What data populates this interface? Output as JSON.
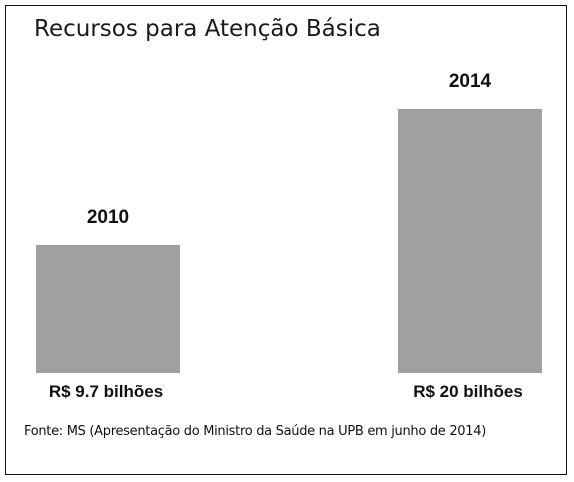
{
  "chart_data": {
    "type": "bar",
    "title": "Recursos para Atenção Básica",
    "categories": [
      "2010",
      "2014"
    ],
    "values": [
      9.7,
      20
    ],
    "value_labels": [
      "R$ 9.7 bilhões",
      "R$ 20 bilhões"
    ],
    "unit": "R$ bilhões",
    "xlabel": "",
    "ylabel": "",
    "ylim": [
      0,
      20
    ],
    "grid": false,
    "legend": "none",
    "bar_color": "#a0a0a0",
    "source": "Fonte: MS (Apresentação do Ministro da Saúde na UPB em junho de 2014)"
  }
}
